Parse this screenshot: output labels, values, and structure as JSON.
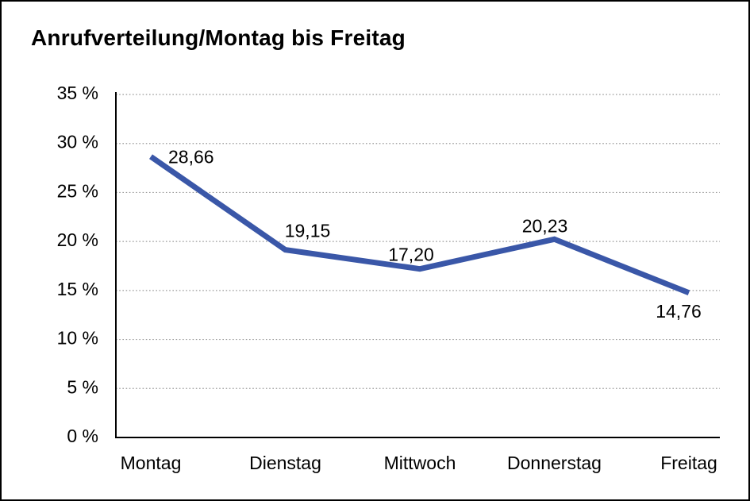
{
  "title": "Anrufverteilung/Montag bis Freitag",
  "chart_data": {
    "type": "line",
    "title": "Anrufverteilung/Montag bis Freitag",
    "categories": [
      "Montag",
      "Dienstag",
      "Mittwoch",
      "Donnerstag",
      "Freitag"
    ],
    "values": [
      28.66,
      19.15,
      17.2,
      20.23,
      14.76
    ],
    "value_labels": [
      "28,66",
      "19,15",
      "17,20",
      "20,23",
      "14,76"
    ],
    "xlabel": "",
    "ylabel": "",
    "ylim": [
      0,
      35
    ],
    "ytick_interval": 5,
    "ytick_labels": [
      "35 %",
      "30 %",
      "25 %",
      "20 %",
      "15 %",
      "10 %",
      "5 %",
      "0 %"
    ],
    "grid": "horizontal-dotted",
    "legend": "none"
  },
  "colors": {
    "line": "#3A57A8",
    "grid": "#999999",
    "axis": "#000000",
    "text": "#000000",
    "background": "#FFFFFF",
    "border": "#000000"
  }
}
